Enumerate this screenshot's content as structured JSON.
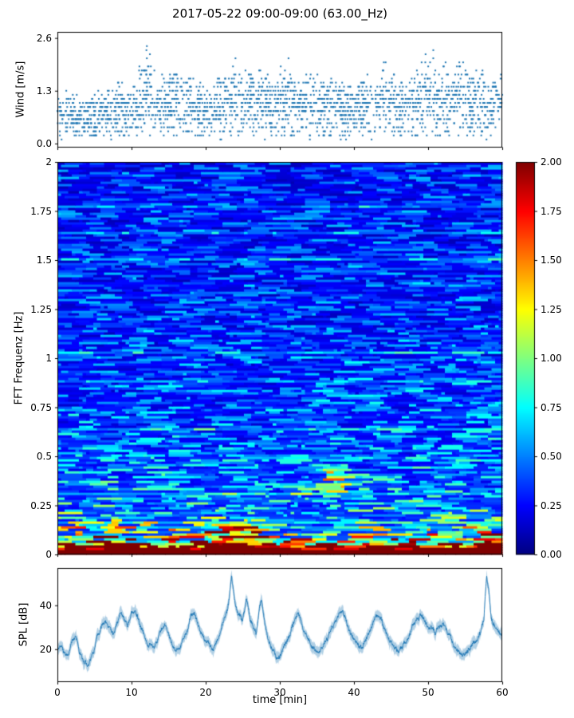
{
  "figure": {
    "title": "2017-05-22 09:00-09:00 (63.00_Hz)",
    "background_color": "#ffffff",
    "accent_color": "#1f77b4"
  },
  "chart_data": [
    {
      "id": "wind",
      "type": "scatter",
      "ylabel": "Wind [m/s]",
      "xlim": [
        0,
        60
      ],
      "ylim": [
        -0.1,
        2.75
      ],
      "yticks": [
        0.0,
        1.3,
        2.6
      ],
      "ytick_labels": [
        "0.0",
        "1.3",
        "2.6"
      ],
      "xticks": [
        0,
        10,
        20,
        30,
        40,
        50,
        60
      ],
      "marker_color": "#1f77b4",
      "n_points": 2300,
      "quantize_step": 0.1,
      "seed": 1234,
      "gust_envelope": [
        [
          0,
          1.4
        ],
        [
          2,
          1.3
        ],
        [
          4,
          1.2
        ],
        [
          6,
          1.4
        ],
        [
          8,
          1.6
        ],
        [
          10,
          1.4
        ],
        [
          12,
          2.6
        ],
        [
          13,
          2.1
        ],
        [
          14,
          1.7
        ],
        [
          15,
          2.1
        ],
        [
          16,
          2.0
        ],
        [
          17,
          1.7
        ],
        [
          18,
          1.9
        ],
        [
          19,
          1.6
        ],
        [
          20,
          1.5
        ],
        [
          21,
          1.4
        ],
        [
          22,
          1.8
        ],
        [
          23,
          1.9
        ],
        [
          24,
          2.2
        ],
        [
          25,
          1.8
        ],
        [
          26,
          2.0
        ],
        [
          27,
          2.3
        ],
        [
          28,
          2.0
        ],
        [
          29,
          1.7
        ],
        [
          30,
          2.0
        ],
        [
          31,
          2.3
        ],
        [
          32,
          1.8
        ],
        [
          33,
          1.6
        ],
        [
          34,
          1.8
        ],
        [
          35,
          1.9
        ],
        [
          36,
          1.5
        ],
        [
          37,
          1.7
        ],
        [
          38,
          1.9
        ],
        [
          39,
          1.6
        ],
        [
          40,
          1.4
        ],
        [
          41,
          1.6
        ],
        [
          42,
          1.7
        ],
        [
          43,
          1.5
        ],
        [
          44,
          2.2
        ],
        [
          45,
          1.9
        ],
        [
          46,
          1.7
        ],
        [
          47,
          1.6
        ],
        [
          48,
          1.9
        ],
        [
          49,
          2.1
        ],
        [
          50,
          2.5
        ],
        [
          51,
          2.3
        ],
        [
          52,
          2.1
        ],
        [
          53,
          1.9
        ],
        [
          54,
          2.3
        ],
        [
          55,
          2.1
        ],
        [
          56,
          1.8
        ],
        [
          57,
          2.0
        ],
        [
          58,
          1.7
        ],
        [
          59,
          1.9
        ],
        [
          60,
          2.1
        ]
      ]
    },
    {
      "id": "spectrogram",
      "type": "heatmap",
      "ylabel": "FFT Frequenz [Hz]",
      "xlim": [
        0,
        60
      ],
      "ylim": [
        0,
        2
      ],
      "yticks": [
        0,
        0.25,
        0.5,
        0.75,
        1,
        1.25,
        1.5,
        1.75,
        2
      ],
      "ytick_labels": [
        "0",
        "0.25",
        "0.5",
        "0.75",
        "1",
        "1.25",
        "1.5",
        "1.75",
        "2"
      ],
      "xticks": [
        0,
        10,
        20,
        30,
        40,
        50,
        60
      ],
      "clim": [
        0,
        2
      ],
      "colormap": "jet",
      "grid_cols": 124,
      "grid_rows": 164,
      "seed": 77,
      "noise_model": {
        "base_offset": 0.15,
        "blue_decay": [
          0.2,
          0.6
        ],
        "lowfreq_band": [
          2.1,
          0.045
        ],
        "streak_amp": [
          0.45,
          0.65,
          0.45
        ],
        "lowfreq_streak": [
          1.2,
          0.12
        ],
        "cell_noise": 0.12,
        "streak_exponent": 2.3,
        "row_burst_prob": 0.06,
        "row_burst_gain": 0.22
      },
      "hotspots": [
        {
          "t": [
            21.5,
            27.5
          ],
          "f": [
            0.0,
            0.16
          ],
          "gain": 1.0
        },
        {
          "t": [
            36.0,
            39.5
          ],
          "f": [
            0.32,
            0.46
          ],
          "gain": 0.85
        },
        {
          "t": [
            57.2,
            60.0
          ],
          "f": [
            0.0,
            0.12
          ],
          "gain": 1.3
        },
        {
          "t": [
            6.0,
            10.5
          ],
          "f": [
            0.0,
            0.1
          ],
          "gain": 0.55
        },
        {
          "t": [
            30.0,
            34.0
          ],
          "f": [
            0.0,
            0.09
          ],
          "gain": 0.45
        },
        {
          "t": [
            42.0,
            45.0
          ],
          "f": [
            0.0,
            0.09
          ],
          "gain": 0.5
        }
      ]
    },
    {
      "id": "spl",
      "type": "line",
      "ylabel": "SPL [dB]",
      "xlabel": "time [min]",
      "xlim": [
        0,
        60
      ],
      "ylim": [
        5,
        57
      ],
      "yticks": [
        20,
        40
      ],
      "ytick_labels": [
        "20",
        "40"
      ],
      "xticks": [
        0,
        10,
        20,
        30,
        40,
        50,
        60
      ],
      "xtick_labels": [
        "0",
        "10",
        "20",
        "30",
        "40",
        "50",
        "60"
      ],
      "line_color": "#1f77b4",
      "band_alpha": 0.35,
      "seed": 555,
      "anchors": [
        [
          0,
          22
        ],
        [
          0.5,
          20
        ],
        [
          1,
          17
        ],
        [
          1.5,
          16
        ],
        [
          2,
          24
        ],
        [
          2.5,
          27
        ],
        [
          3,
          18
        ],
        [
          3.5,
          14
        ],
        [
          4,
          13
        ],
        [
          4.5,
          16
        ],
        [
          5,
          20
        ],
        [
          5.5,
          26
        ],
        [
          6,
          31
        ],
        [
          6.5,
          33
        ],
        [
          7,
          29
        ],
        [
          7.5,
          26
        ],
        [
          8,
          31
        ],
        [
          8.5,
          36
        ],
        [
          9,
          33
        ],
        [
          9.5,
          30
        ],
        [
          10,
          37
        ],
        [
          10.5,
          38
        ],
        [
          11,
          33
        ],
        [
          11.5,
          27
        ],
        [
          12,
          24
        ],
        [
          12.5,
          22
        ],
        [
          13,
          21
        ],
        [
          13.5,
          24
        ],
        [
          14,
          30
        ],
        [
          14.5,
          32
        ],
        [
          15,
          27
        ],
        [
          15.5,
          22
        ],
        [
          16,
          19
        ],
        [
          16.5,
          20
        ],
        [
          17,
          25
        ],
        [
          17.5,
          29
        ],
        [
          18,
          35
        ],
        [
          18.5,
          36
        ],
        [
          19,
          31
        ],
        [
          19.5,
          27
        ],
        [
          20,
          24
        ],
        [
          20.5,
          21
        ],
        [
          21,
          20
        ],
        [
          21.5,
          23
        ],
        [
          22,
          28
        ],
        [
          22.5,
          33
        ],
        [
          23,
          39
        ],
        [
          23.5,
          52
        ],
        [
          24,
          40
        ],
        [
          24.5,
          35
        ],
        [
          25,
          33
        ],
        [
          25.5,
          44
        ],
        [
          26,
          33
        ],
        [
          26.8,
          27
        ],
        [
          27.5,
          44
        ],
        [
          28,
          31
        ],
        [
          28.5,
          24
        ],
        [
          29,
          20
        ],
        [
          29.5,
          18
        ],
        [
          30,
          17
        ],
        [
          30.5,
          20
        ],
        [
          31,
          24
        ],
        [
          31.5,
          28
        ],
        [
          32,
          33
        ],
        [
          32.5,
          36
        ],
        [
          33,
          31
        ],
        [
          33.5,
          27
        ],
        [
          34,
          24
        ],
        [
          34.5,
          21
        ],
        [
          35,
          19
        ],
        [
          35.5,
          20
        ],
        [
          36,
          22
        ],
        [
          36.5,
          26
        ],
        [
          37,
          30
        ],
        [
          37.5,
          33
        ],
        [
          38,
          36
        ],
        [
          38.5,
          38
        ],
        [
          39,
          32
        ],
        [
          39.5,
          28
        ],
        [
          40,
          25
        ],
        [
          40.5,
          22
        ],
        [
          41,
          20
        ],
        [
          41.5,
          24
        ],
        [
          42,
          28
        ],
        [
          42.5,
          32
        ],
        [
          43,
          36
        ],
        [
          43.5,
          34
        ],
        [
          44,
          30
        ],
        [
          44.5,
          27
        ],
        [
          45,
          24
        ],
        [
          45.5,
          21
        ],
        [
          46,
          19
        ],
        [
          46.5,
          21
        ],
        [
          47,
          23
        ],
        [
          47.5,
          27
        ],
        [
          48,
          31
        ],
        [
          48.5,
          34
        ],
        [
          49,
          36
        ],
        [
          49.5,
          33
        ],
        [
          50,
          30
        ],
        [
          50.5,
          29
        ],
        [
          51,
          27
        ],
        [
          51.5,
          29
        ],
        [
          52,
          32
        ],
        [
          52.5,
          29
        ],
        [
          53,
          26
        ],
        [
          53.5,
          22
        ],
        [
          54,
          19
        ],
        [
          54.5,
          17
        ],
        [
          55,
          17
        ],
        [
          55.5,
          20
        ],
        [
          56,
          23
        ],
        [
          56.5,
          24
        ],
        [
          57,
          26
        ],
        [
          57.5,
          33
        ],
        [
          57.9,
          52
        ],
        [
          58.2,
          46
        ],
        [
          58.5,
          34
        ],
        [
          59,
          30
        ],
        [
          59.5,
          28
        ],
        [
          60,
          27
        ]
      ]
    }
  ],
  "colorbar": {
    "orientation": "vertical",
    "clim": [
      0,
      2
    ],
    "colormap": "jet",
    "ticks": [
      0,
      0.25,
      0.5,
      0.75,
      1,
      1.25,
      1.5,
      1.75,
      2
    ],
    "tick_labels": [
      "0.00",
      "0.25",
      "0.50",
      "0.75",
      "1.00",
      "1.25",
      "1.50",
      "1.75",
      "2.00"
    ]
  }
}
